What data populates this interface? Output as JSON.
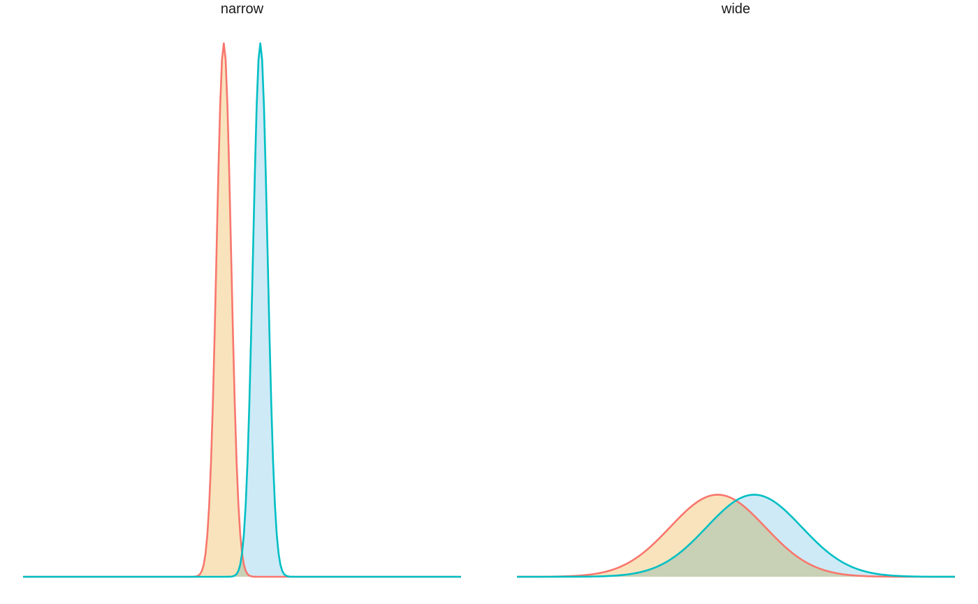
{
  "chart_data": [
    {
      "type": "area",
      "title": "narrow",
      "xlabel": "",
      "ylabel": "",
      "grid": false,
      "axes_visible": false,
      "legend": "none",
      "x_range": [
        -6,
        6
      ],
      "y_range": [
        0,
        2.0
      ],
      "series": [
        {
          "color": "#F8766D",
          "fill": "#F5D9A6",
          "mean": -0.5,
          "sd": 0.2
        },
        {
          "color": "#00BFC4",
          "fill": "#BEE3F3",
          "mean": 0.5,
          "sd": 0.2
        }
      ]
    },
    {
      "type": "area",
      "title": "wide",
      "xlabel": "",
      "ylabel": "",
      "grid": false,
      "axes_visible": false,
      "legend": "none",
      "x_range": [
        -6,
        6
      ],
      "y_range": [
        0,
        2.0
      ],
      "series": [
        {
          "color": "#F8766D",
          "fill": "#F5D9A6",
          "mean": -0.5,
          "sd": 1.3
        },
        {
          "color": "#00BFC4",
          "fill": "#BEE3F3",
          "mean": 0.5,
          "sd": 1.3
        }
      ]
    }
  ]
}
